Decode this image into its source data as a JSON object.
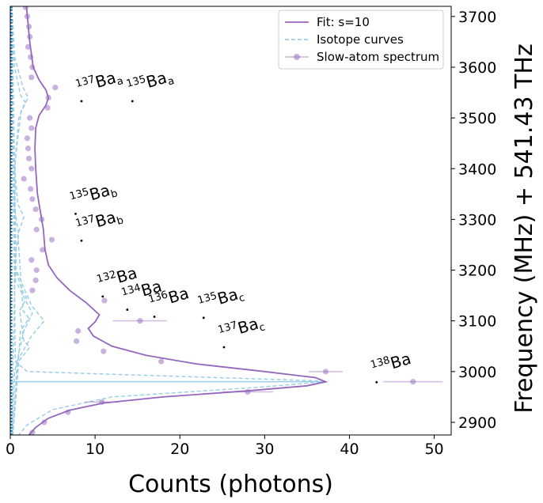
{
  "chart_data": {
    "type": "scatter",
    "title": "",
    "xlabel": "Counts (photons)",
    "ylabel": "Frequency (MHz) + 541.43 THz",
    "xlim": [
      0,
      52
    ],
    "ylim": [
      2875,
      3720
    ],
    "x_ticks": [
      0,
      10,
      20,
      30,
      40,
      50
    ],
    "y_ticks": [
      2900,
      3000,
      3100,
      3200,
      3300,
      3400,
      3500,
      3600,
      3700
    ],
    "y_axis_side": "right",
    "grid": false,
    "legend": {
      "position": "top-right",
      "entries": [
        {
          "label": "Fit: s=10",
          "color": "#9467bd",
          "style": "solid"
        },
        {
          "label": "Isotope curves",
          "color": "#9ccfe6",
          "style": "dashed"
        },
        {
          "label": "Slow-atom spectrum",
          "color": "#9467bd",
          "style": "marker-errorbar"
        }
      ]
    },
    "colors": {
      "fit": "#9467bd",
      "isotope": "#9ccfe6",
      "data": "#9467bd",
      "baseline": "#1f77b4"
    },
    "data_points": [
      {
        "x": 1.8,
        "y": 3718
      },
      {
        "x": 2.0,
        "y": 3700
      },
      {
        "x": 2.2,
        "y": 3680
      },
      {
        "x": 2.3,
        "y": 3660
      },
      {
        "x": 2.1,
        "y": 3640
      },
      {
        "x": 2.4,
        "y": 3620
      },
      {
        "x": 2.6,
        "y": 3600
      },
      {
        "x": 2.5,
        "y": 3580
      },
      {
        "x": 5.3,
        "y": 3560
      },
      {
        "x": 4.5,
        "y": 3540
      },
      {
        "x": 4.4,
        "y": 3520
      },
      {
        "x": 2.3,
        "y": 3500
      },
      {
        "x": 2.5,
        "y": 3480
      },
      {
        "x": 2.0,
        "y": 3460
      },
      {
        "x": 2.1,
        "y": 3440
      },
      {
        "x": 2.2,
        "y": 3420
      },
      {
        "x": 2.5,
        "y": 3400
      },
      {
        "x": 1.6,
        "y": 3380
      },
      {
        "x": 2.4,
        "y": 3360
      },
      {
        "x": 2.6,
        "y": 3340
      },
      {
        "x": 3.0,
        "y": 3320
      },
      {
        "x": 3.7,
        "y": 3300
      },
      {
        "x": 3.1,
        "y": 3280
      },
      {
        "x": 4.9,
        "y": 3260
      },
      {
        "x": 3.8,
        "y": 3240
      },
      {
        "x": 2.5,
        "y": 3220
      },
      {
        "x": 3.1,
        "y": 3200
      },
      {
        "x": 3.0,
        "y": 3180
      },
      {
        "x": 2.6,
        "y": 3160
      },
      {
        "x": 11.1,
        "y": 3140
      },
      {
        "x": 15.3,
        "y": 3100,
        "xerr": 3.2
      },
      {
        "x": 8.0,
        "y": 3080
      },
      {
        "x": 7.8,
        "y": 3060
      },
      {
        "x": 11.0,
        "y": 3040
      },
      {
        "x": 17.8,
        "y": 3020
      },
      {
        "x": 37.2,
        "y": 3000,
        "xerr": 2.0
      },
      {
        "x": 47.5,
        "y": 2980,
        "xerr": 3.5
      },
      {
        "x": 28.0,
        "y": 2960,
        "xerr": 3.0
      },
      {
        "x": 10.8,
        "y": 2940,
        "xerr": 2.0
      },
      {
        "x": 6.8,
        "y": 2920
      },
      {
        "x": 4.0,
        "y": 2900
      },
      {
        "x": 2.6,
        "y": 2880
      }
    ],
    "fit_curve": [
      {
        "x": 1.9,
        "y": 3720
      },
      {
        "x": 2.3,
        "y": 3650
      },
      {
        "x": 2.7,
        "y": 3600
      },
      {
        "x": 3.4,
        "y": 3575
      },
      {
        "x": 4.2,
        "y": 3555
      },
      {
        "x": 4.5,
        "y": 3540
      },
      {
        "x": 4.2,
        "y": 3525
      },
      {
        "x": 3.4,
        "y": 3505
      },
      {
        "x": 3.0,
        "y": 3480
      },
      {
        "x": 2.9,
        "y": 3440
      },
      {
        "x": 3.0,
        "y": 3400
      },
      {
        "x": 3.2,
        "y": 3350
      },
      {
        "x": 3.6,
        "y": 3310
      },
      {
        "x": 3.9,
        "y": 3280
      },
      {
        "x": 4.0,
        "y": 3260
      },
      {
        "x": 4.1,
        "y": 3240
      },
      {
        "x": 4.5,
        "y": 3210
      },
      {
        "x": 5.5,
        "y": 3185
      },
      {
        "x": 7.0,
        "y": 3160
      },
      {
        "x": 9.0,
        "y": 3135
      },
      {
        "x": 10.5,
        "y": 3112
      },
      {
        "x": 10.0,
        "y": 3098
      },
      {
        "x": 9.2,
        "y": 3085
      },
      {
        "x": 9.8,
        "y": 3070
      },
      {
        "x": 12.0,
        "y": 3050
      },
      {
        "x": 16.0,
        "y": 3032
      },
      {
        "x": 22.0,
        "y": 3015
      },
      {
        "x": 30.0,
        "y": 3000
      },
      {
        "x": 36.0,
        "y": 2988
      },
      {
        "x": 37.2,
        "y": 2980
      },
      {
        "x": 35.0,
        "y": 2972
      },
      {
        "x": 28.0,
        "y": 2962
      },
      {
        "x": 18.0,
        "y": 2950
      },
      {
        "x": 11.0,
        "y": 2938
      },
      {
        "x": 7.0,
        "y": 2924
      },
      {
        "x": 4.5,
        "y": 2908
      },
      {
        "x": 3.0,
        "y": 2890
      },
      {
        "x": 2.2,
        "y": 2875
      }
    ],
    "isotope_curves": [
      {
        "points": [
          {
            "x": 0.1,
            "y": 3720
          },
          {
            "x": 0.6,
            "y": 3020
          },
          {
            "x": 2.0,
            "y": 3000
          },
          {
            "x": 36.0,
            "y": 2982
          },
          {
            "x": 37.0,
            "y": 2980
          },
          {
            "x": 30.0,
            "y": 2970
          },
          {
            "x": 12.0,
            "y": 2950
          },
          {
            "x": 5.0,
            "y": 2925
          },
          {
            "x": 2.0,
            "y": 2895
          },
          {
            "x": 1.0,
            "y": 2875
          }
        ]
      },
      {
        "points": [
          {
            "x": 0.2,
            "y": 3720
          },
          {
            "x": 0.7,
            "y": 3200
          },
          {
            "x": 2.5,
            "y": 3130
          },
          {
            "x": 4.0,
            "y": 3100
          },
          {
            "x": 2.5,
            "y": 3070
          },
          {
            "x": 0.8,
            "y": 3020
          },
          {
            "x": 0.3,
            "y": 2875
          }
        ]
      },
      {
        "points": [
          {
            "x": 0.2,
            "y": 3720
          },
          {
            "x": 0.6,
            "y": 3180
          },
          {
            "x": 1.8,
            "y": 3140
          },
          {
            "x": 2.6,
            "y": 3115
          },
          {
            "x": 1.6,
            "y": 3080
          },
          {
            "x": 0.5,
            "y": 3000
          },
          {
            "x": 0.2,
            "y": 2875
          }
        ]
      },
      {
        "points": [
          {
            "x": 0.2,
            "y": 3720
          },
          {
            "x": 0.5,
            "y": 3620
          },
          {
            "x": 1.5,
            "y": 3560
          },
          {
            "x": 2.1,
            "y": 3540
          },
          {
            "x": 1.3,
            "y": 3515
          },
          {
            "x": 0.6,
            "y": 3420
          },
          {
            "x": 0.5,
            "y": 3320
          },
          {
            "x": 1.0,
            "y": 3270
          },
          {
            "x": 0.6,
            "y": 3230
          },
          {
            "x": 0.3,
            "y": 3000
          },
          {
            "x": 0.2,
            "y": 2875
          }
        ]
      },
      {
        "points": [
          {
            "x": 0.2,
            "y": 3720
          },
          {
            "x": 0.5,
            "y": 3600
          },
          {
            "x": 1.2,
            "y": 3545
          },
          {
            "x": 1.8,
            "y": 3530
          },
          {
            "x": 1.0,
            "y": 3500
          },
          {
            "x": 0.5,
            "y": 3400
          },
          {
            "x": 0.9,
            "y": 3330
          },
          {
            "x": 1.6,
            "y": 3305
          },
          {
            "x": 0.9,
            "y": 3270
          },
          {
            "x": 1.5,
            "y": 3120
          },
          {
            "x": 2.2,
            "y": 3105
          },
          {
            "x": 1.2,
            "y": 3080
          },
          {
            "x": 0.3,
            "y": 2875
          }
        ]
      },
      {
        "points": [
          {
            "x": 0.2,
            "y": 3720
          },
          {
            "x": 0.6,
            "y": 3200
          },
          {
            "x": 1.4,
            "y": 3160
          },
          {
            "x": 1.9,
            "y": 3145
          },
          {
            "x": 1.1,
            "y": 3120
          },
          {
            "x": 1.6,
            "y": 3060
          },
          {
            "x": 2.3,
            "y": 3048
          },
          {
            "x": 1.0,
            "y": 3020
          },
          {
            "x": 0.3,
            "y": 2875
          }
        ]
      }
    ],
    "annotations": [
      {
        "sup": "137",
        "base": "Ba",
        "sub": "a",
        "x": 8.4,
        "y": 3533
      },
      {
        "sup": "135",
        "base": "Ba",
        "sub": "a",
        "x": 14.4,
        "y": 3533
      },
      {
        "sup": "135",
        "base": "Ba",
        "sub": "b",
        "x": 7.7,
        "y": 3311
      },
      {
        "sup": "137",
        "base": "Ba",
        "sub": "b",
        "x": 8.4,
        "y": 3258
      },
      {
        "sup": "132",
        "base": "Ba",
        "sub": "",
        "x": 10.9,
        "y": 3148
      },
      {
        "sup": "134",
        "base": "Ba",
        "sub": "",
        "x": 13.8,
        "y": 3122
      },
      {
        "sup": "136",
        "base": "Ba",
        "sub": "",
        "x": 17.0,
        "y": 3108
      },
      {
        "sup": "135",
        "base": "Ba",
        "sub": "c",
        "x": 22.8,
        "y": 3106
      },
      {
        "sup": "137",
        "base": "Ba",
        "sub": "c",
        "x": 25.2,
        "y": 3048
      },
      {
        "sup": "138",
        "base": "Ba",
        "sub": "",
        "x": 43.2,
        "y": 2979
      }
    ],
    "reference_line": {
      "y": 2980,
      "x_from": 0,
      "x_to": 37.2
    }
  }
}
